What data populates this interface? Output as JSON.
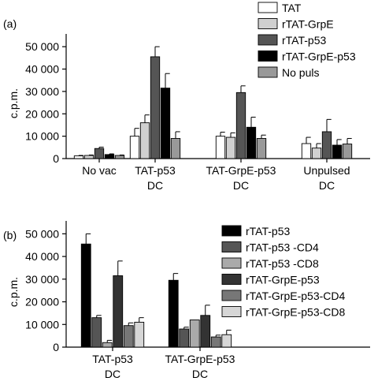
{
  "chart_data": [
    {
      "panel_label": "(a)",
      "type": "bar",
      "ylabel": "c.p.m.",
      "ylim": [
        0,
        55000
      ],
      "yticks": [
        0,
        10000,
        20000,
        30000,
        40000,
        50000
      ],
      "ytick_labels": [
        "0",
        "10 000",
        "20 000",
        "30 000",
        "40 000",
        "50 000"
      ],
      "grid": false,
      "legend_position": "top-right",
      "categories": [
        {
          "line1": "No vac",
          "line2": ""
        },
        {
          "line1": "TAT-p53",
          "line2": "DC"
        },
        {
          "line1": "TAT-GrpE-p53",
          "line2": "DC"
        },
        {
          "line1": "Unpulsed",
          "line2": "DC"
        }
      ],
      "series": [
        {
          "name": "TAT",
          "color": "#ffffff",
          "values": [
            1200,
            10000,
            10000,
            6700
          ],
          "errors": [
            200,
            3500,
            1800,
            2800
          ]
        },
        {
          "name": "rTAT-GrpE",
          "color": "#d0d0d0",
          "values": [
            1400,
            16000,
            9500,
            4700
          ],
          "errors": [
            200,
            3500,
            2000,
            2000
          ]
        },
        {
          "name": "rTAT-p53",
          "color": "#555555",
          "values": [
            4500,
            45500,
            29500,
            12000
          ],
          "errors": [
            600,
            4500,
            3000,
            5500
          ]
        },
        {
          "name": "rTAT-GrpE-p53",
          "color": "#000000",
          "values": [
            1800,
            31500,
            14000,
            6000
          ],
          "errors": [
            300,
            6500,
            4500,
            2500
          ]
        },
        {
          "name": "No puls",
          "color": "#999999",
          "values": [
            1400,
            9000,
            9000,
            6500
          ],
          "errors": [
            200,
            3000,
            1500,
            2500
          ]
        }
      ]
    },
    {
      "panel_label": "(b)",
      "type": "bar",
      "ylabel": "c.p.m.",
      "ylim": [
        0,
        55000
      ],
      "yticks": [
        0,
        10000,
        20000,
        30000,
        40000,
        50000
      ],
      "ytick_labels": [
        "0",
        "10 000",
        "20 000",
        "30 000",
        "40 000",
        "50 000"
      ],
      "grid": false,
      "legend_position": "top-right",
      "categories": [
        {
          "line1": "TAT-p53",
          "line2": "DC"
        },
        {
          "line1": "TAT-GrpE-p53",
          "line2": "DC"
        }
      ],
      "series": [
        {
          "name": "rTAT-p53",
          "color": "#000000",
          "values": [
            45500,
            29500
          ],
          "errors": [
            4500,
            3000
          ]
        },
        {
          "name": "rTAT-p53 -CD4",
          "color": "#555555",
          "values": [
            13000,
            8000
          ],
          "errors": [
            1000,
            800
          ]
        },
        {
          "name": "rTAT-p53 -CD8",
          "color": "#aaaaaa",
          "values": [
            2000,
            12000
          ],
          "errors": [
            1000,
            0
          ]
        },
        {
          "name": "rTAT-GrpE-p53",
          "color": "#333333",
          "values": [
            31500,
            14000
          ],
          "errors": [
            6500,
            4500
          ]
        },
        {
          "name": "rTAT-GrpE-p53-CD4",
          "color": "#777777",
          "values": [
            9500,
            4500
          ],
          "errors": [
            1200,
            800
          ]
        },
        {
          "name": "rTAT-GrpE-p53-CD8",
          "color": "#d6d6d6",
          "values": [
            11000,
            5500
          ],
          "errors": [
            2000,
            2000
          ]
        }
      ]
    }
  ]
}
